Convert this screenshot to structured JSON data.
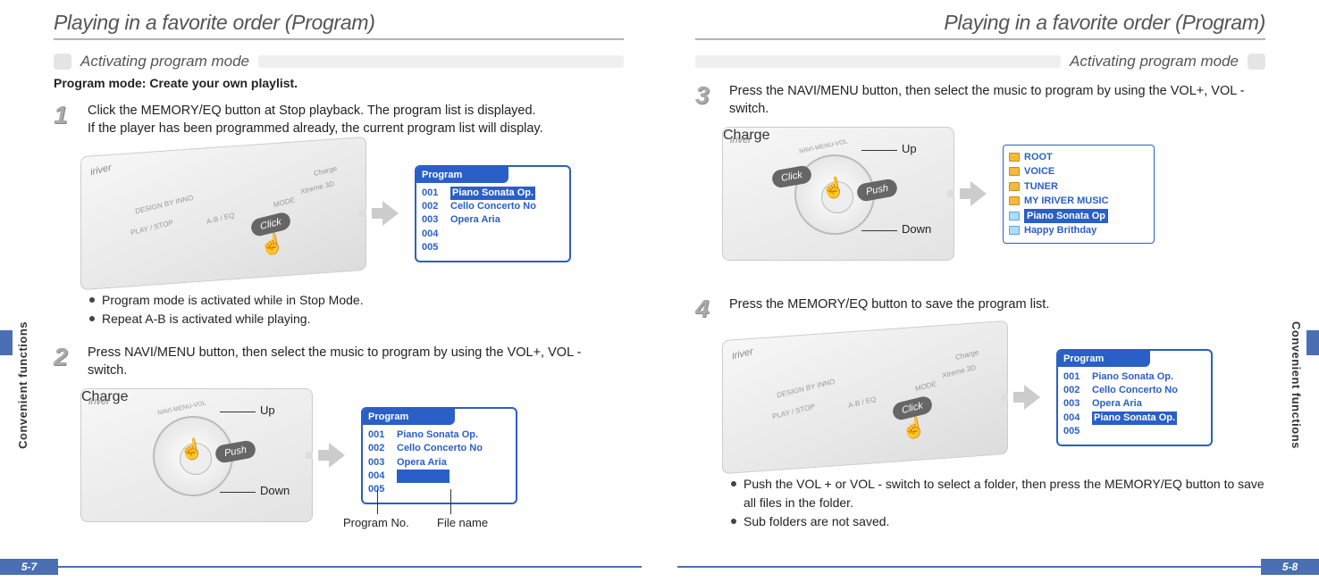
{
  "left": {
    "title": "Playing in a favorite order (Program)",
    "subhead": "Activating program mode",
    "intro": "Program mode: Create your own playlist.",
    "pagenum": "5-7",
    "sidetab": "Convenient functions",
    "step1": {
      "num": "1",
      "text1": "Click the MEMORY/EQ button at Stop playback. The program list is displayed.",
      "text2": "If the player has been programmed already, the current program list will display.",
      "device": {
        "brand": "iriver",
        "l1": "DESIGN BY INNO",
        "l2": "PLAY / STOP",
        "l3": "A-B / EQ",
        "l4": "MODE",
        "l5": "Charge",
        "l6": "Xtreme 3D",
        "click": "Click"
      },
      "screen": {
        "title": "Program",
        "rows": [
          {
            "num": "001",
            "name": "Piano Sonata Op.",
            "sel": true
          },
          {
            "num": "002",
            "name": "Cello Concerto No",
            "sel": false
          },
          {
            "num": "003",
            "name": "Opera Aria",
            "sel": false
          },
          {
            "num": "004",
            "name": "",
            "sel": false
          },
          {
            "num": "005",
            "name": "",
            "sel": false
          }
        ]
      },
      "bullets": [
        "Program mode is activated while in Stop Mode.",
        "Repeat A-B is activated while playing."
      ]
    },
    "step2": {
      "num": "2",
      "text": "Press NAVI/MENU button, then select the music to program by  using the VOL+, VOL - switch.",
      "knob": {
        "arc": "NAVI-MENU-VOL",
        "push": "Push",
        "up": "Up",
        "down": "Down"
      },
      "screen": {
        "title": "Program",
        "rows": [
          {
            "num": "001",
            "name": "Piano Sonata Op.",
            "sel": false
          },
          {
            "num": "002",
            "name": "Cello Concerto No",
            "sel": false
          },
          {
            "num": "003",
            "name": "Opera Aria",
            "sel": false
          },
          {
            "num": "004",
            "name": "",
            "sel": true
          },
          {
            "num": "005",
            "name": "",
            "sel": false
          }
        ]
      },
      "callouts": {
        "progno": "Program No.",
        "filename": "File name"
      }
    }
  },
  "right": {
    "title": "Playing in a favorite order (Program)",
    "subhead": "Activating program mode",
    "pagenum": "5-8",
    "sidetab": "Convenient functions",
    "step3": {
      "num": "3",
      "text": "Press the NAVI/MENU button, then select the music to program by using the VOL+, VOL - switch.",
      "knob": {
        "arc": "NAVI-MENU-VOL",
        "click": "Click",
        "push": "Push",
        "up": "Up",
        "down": "Down"
      },
      "root": {
        "items": [
          {
            "icon": "folder",
            "label": "ROOT",
            "sel": false
          },
          {
            "icon": "folder",
            "label": "VOICE",
            "sel": false
          },
          {
            "icon": "folder",
            "label": "TUNER",
            "sel": false
          },
          {
            "icon": "folder",
            "label": "MY IRIVER MUSIC",
            "sel": false
          },
          {
            "icon": "file",
            "label": "Piano Sonata Op",
            "sel": true
          },
          {
            "icon": "file",
            "label": "Happy Brithday",
            "sel": false
          }
        ]
      }
    },
    "step4": {
      "num": "4",
      "text": "Press the MEMORY/EQ button to save the program list.",
      "device": {
        "brand": "iriver",
        "l1": "DESIGN BY INNO",
        "l2": "PLAY / STOP",
        "l3": "A-B / EQ",
        "l4": "MODE",
        "l5": "Charge",
        "l6": "Xtreme 3D",
        "click": "Click"
      },
      "screen": {
        "title": "Program",
        "rows": [
          {
            "num": "001",
            "name": "Piano Sonata Op.",
            "sel": false
          },
          {
            "num": "002",
            "name": "Cello Concerto No",
            "sel": false
          },
          {
            "num": "003",
            "name": "Opera Aria",
            "sel": false
          },
          {
            "num": "004",
            "name": "Piano Sonata Op.",
            "sel": true
          },
          {
            "num": "005",
            "name": "",
            "sel": false
          }
        ]
      },
      "bullets": [
        "Push the VOL + or VOL - switch to select a folder, then press the MEMORY/EQ button to save all files in the folder.",
        "Sub folders are not saved."
      ]
    }
  },
  "colors": {
    "accent": "#4b6fb3",
    "screenBlue": "#2a5fc7",
    "folder": "#f5b93c"
  }
}
